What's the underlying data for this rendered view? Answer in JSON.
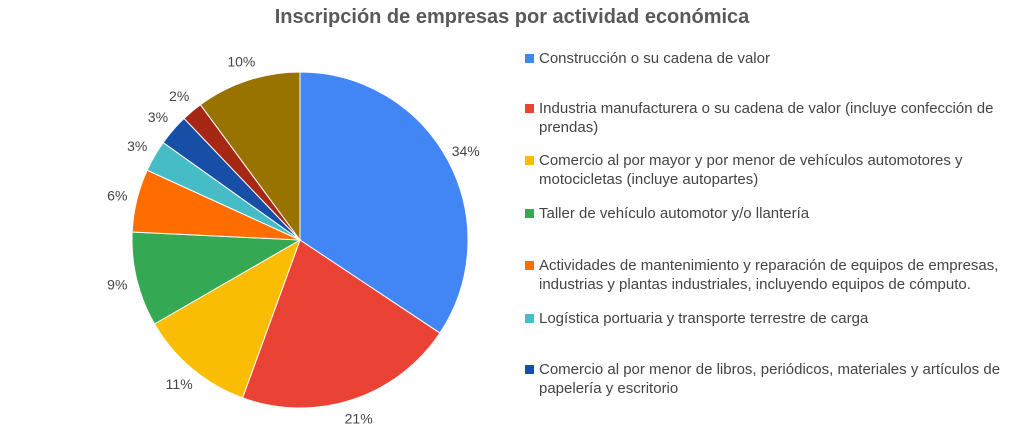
{
  "chart_data": {
    "type": "pie",
    "title": "Inscripción de empresas por actividad económica",
    "slices": [
      {
        "name": "Construcción o su cadena de valor",
        "value": 34,
        "label": "34%",
        "color": "#4285F4"
      },
      {
        "name": "Industria manufacturera o su cadena de valor (incluye confección de prendas)",
        "value": 21,
        "label": "21%",
        "color": "#EA4335"
      },
      {
        "name": "Comercio al por mayor y por menor de vehículos automotores y motocicletas (incluye autopartes)",
        "value": 11,
        "label": "11%",
        "color": "#FBBC04"
      },
      {
        "name": "Taller de vehículo automotor y/o llantería",
        "value": 9,
        "label": "9%",
        "color": "#34A853"
      },
      {
        "name": "Actividades de mantenimiento y reparación de equipos de empresas, industrias y plantas industriales, incluyendo equipos de cómputo.",
        "value": 6,
        "label": "6%",
        "color": "#FF6D01"
      },
      {
        "name": "Logística portuaria y transporte terrestre de carga",
        "value": 3,
        "label": "3%",
        "color": "#46BDC6"
      },
      {
        "name": "Comercio al por menor de libros, periódicos, materiales y artículos de papelería y escritorio",
        "value": 3,
        "label": "3%",
        "color": "#174EA6"
      },
      {
        "name": "",
        "value": 2,
        "label": "2%",
        "color": "#A52714"
      },
      {
        "name": "",
        "value": 10,
        "label": "10%",
        "color": "#997300"
      }
    ],
    "legend_position": "right"
  }
}
